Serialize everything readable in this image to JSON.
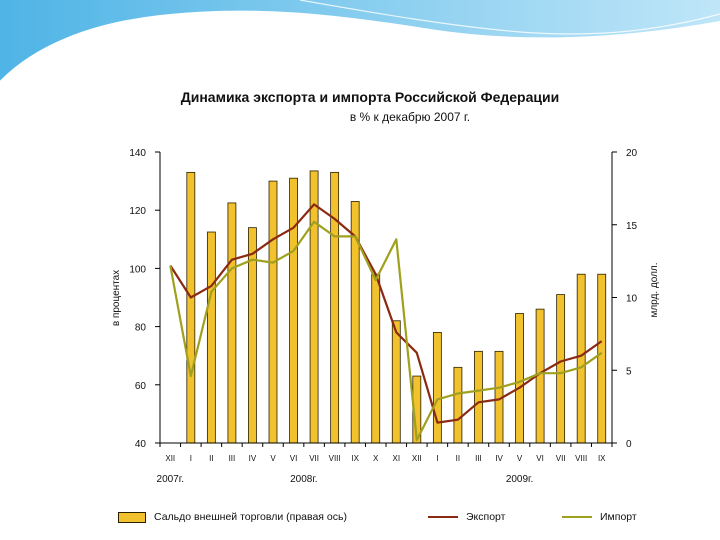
{
  "chart_data": {
    "type": "bar+line",
    "title": "Динамика экспорта и импорта Российской Федерации",
    "subtitle": "в % к декабрю 2007 г.",
    "left_axis": {
      "label": "в процентах",
      "range": [
        40,
        140
      ],
      "ticks": [
        "40",
        "60",
        "80",
        "100",
        "120",
        "140"
      ]
    },
    "right_axis": {
      "label": "млрд. долл.",
      "range": [
        0,
        20
      ],
      "ticks": [
        "0",
        "5",
        "10",
        "15",
        "20"
      ]
    },
    "categories": [
      "XII",
      "I",
      "II",
      "III",
      "IV",
      "V",
      "VI",
      "VII",
      "VIII",
      "IX",
      "X",
      "XI",
      "XII",
      "I",
      "II",
      "III",
      "IV",
      "V",
      "VI",
      "VII",
      "VIII",
      "IX"
    ],
    "year_labels": [
      {
        "text": "2007г.",
        "start": 0,
        "end": 0
      },
      {
        "text": "2008г.",
        "start": 1,
        "end": 12
      },
      {
        "text": "2009г.",
        "start": 13,
        "end": 21
      }
    ],
    "series": [
      {
        "name": "Сальдо внешней торговли (правая ось)",
        "kind": "bar",
        "axis": "right",
        "color": "#f2c12e",
        "values": [
          null,
          18.6,
          14.5,
          16.5,
          14.8,
          18.0,
          18.2,
          18.7,
          18.6,
          16.6,
          11.6,
          8.4,
          4.6,
          7.6,
          5.2,
          6.3,
          6.3,
          8.9,
          9.2,
          10.2,
          11.6,
          11.6
        ]
      },
      {
        "name": "Экспорт",
        "kind": "line",
        "axis": "left",
        "color": "#8b2a12",
        "values": [
          101,
          90,
          94,
          103,
          105,
          110,
          114,
          122,
          117,
          111,
          98,
          78,
          71,
          47,
          48,
          54,
          55,
          59,
          64,
          68,
          70,
          75
        ]
      },
      {
        "name": "Импорт",
        "kind": "line",
        "axis": "left",
        "color": "#a0a01e",
        "values": [
          101,
          63,
          92,
          100,
          103,
          102,
          106,
          116,
          111,
          111,
          96,
          110,
          41,
          55,
          57,
          58,
          59,
          61,
          64,
          64,
          66,
          71
        ]
      }
    ]
  },
  "legend": {
    "bar": "Сальдо внешней торговли (правая ось)",
    "export": "Экспорт",
    "import": "Импорт"
  },
  "colors": {
    "bar_fill": "#f2c12e",
    "bar_stroke": "#2a2000",
    "export": "#8b2a12",
    "import": "#a0a01e",
    "banner": "#7cc6ec"
  }
}
